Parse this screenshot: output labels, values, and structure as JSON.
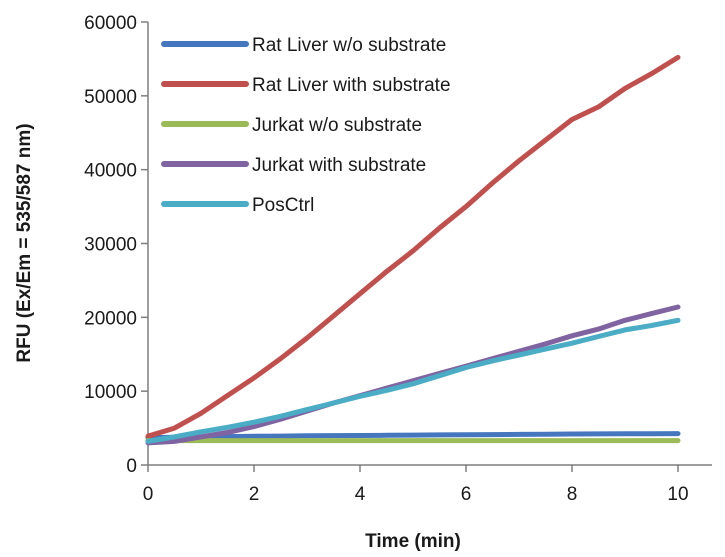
{
  "chart_data": {
    "type": "line",
    "title": "",
    "xlabel": "Time (min)",
    "ylabel": "RFU (Ex/Em = 535/587 nm)",
    "xlim": [
      0,
      10
    ],
    "ylim": [
      0,
      60000
    ],
    "xticks": [
      "0",
      "2",
      "4",
      "6",
      "8",
      "10"
    ],
    "yticks": [
      "0",
      "10000",
      "20000",
      "30000",
      "40000",
      "50000",
      "60000"
    ],
    "grid": false,
    "legend_position": "top-left",
    "x": [
      0,
      0.5,
      1,
      1.5,
      2,
      2.5,
      3,
      3.5,
      4,
      4.5,
      5,
      5.5,
      6,
      6.5,
      7,
      7.5,
      8,
      8.5,
      9,
      9.5,
      10
    ],
    "series": [
      {
        "name": "Rat Liver w/o substrate",
        "color": "#4677BE",
        "values": [
          3700,
          3750,
          3800,
          3850,
          3900,
          3920,
          3950,
          3980,
          4000,
          4020,
          4050,
          4070,
          4100,
          4120,
          4150,
          4170,
          4200,
          4210,
          4220,
          4240,
          4250
        ]
      },
      {
        "name": "Rat Liver with substrate",
        "color": "#C0504D",
        "values": [
          3900,
          5000,
          7000,
          9400,
          11800,
          14400,
          17200,
          20200,
          23200,
          26200,
          29000,
          32100,
          35000,
          38200,
          41200,
          44000,
          46800,
          48500,
          51000,
          53000,
          55200
        ]
      },
      {
        "name": "Jurkat w/o substrate",
        "color": "#9BBB59",
        "values": [
          3300,
          3300,
          3300,
          3300,
          3300,
          3300,
          3300,
          3300,
          3300,
          3300,
          3300,
          3300,
          3300,
          3300,
          3300,
          3300,
          3300,
          3300,
          3300,
          3300,
          3300
        ]
      },
      {
        "name": "Jurkat with substrate",
        "color": "#8064A2",
        "values": [
          3000,
          3200,
          3800,
          4400,
          5200,
          6200,
          7300,
          8400,
          9400,
          10400,
          11400,
          12400,
          13400,
          14400,
          15400,
          16400,
          17500,
          18400,
          19600,
          20500,
          21400
        ]
      },
      {
        "name": "PosCtrl",
        "color": "#4BACC6",
        "values": [
          3200,
          3800,
          4500,
          5100,
          5800,
          6600,
          7500,
          8400,
          9300,
          10100,
          11000,
          12100,
          13200,
          14100,
          14900,
          15700,
          16500,
          17400,
          18300,
          18900,
          19600
        ]
      }
    ]
  }
}
